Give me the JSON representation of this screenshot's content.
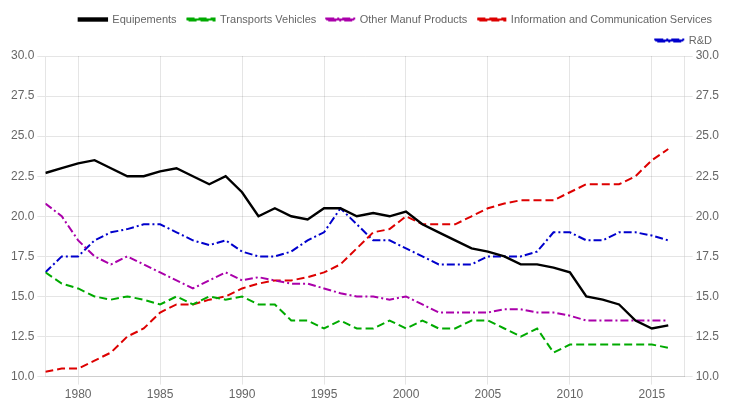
{
  "chart_data": {
    "type": "line",
    "x": [
      1978,
      1979,
      1980,
      1981,
      1982,
      1983,
      1984,
      1985,
      1986,
      1987,
      1988,
      1989,
      1990,
      1991,
      1992,
      1993,
      1994,
      1995,
      1996,
      1997,
      1998,
      1999,
      2000,
      2001,
      2002,
      2003,
      2004,
      2005,
      2006,
      2007,
      2008,
      2009,
      2010,
      2011,
      2012,
      2013,
      2014,
      2015,
      2016
    ],
    "series": [
      {
        "name": "Equipements",
        "color": "#000000",
        "line_style": "solid",
        "values": [
          22.7,
          23.0,
          23.3,
          23.5,
          23.0,
          22.5,
          22.5,
          22.8,
          23.0,
          22.5,
          22.0,
          22.5,
          21.5,
          20.0,
          20.5,
          20.0,
          19.8,
          20.5,
          20.5,
          20.0,
          20.2,
          20.0,
          20.3,
          19.5,
          19.0,
          18.5,
          18.0,
          17.8,
          17.5,
          17.0,
          17.0,
          16.8,
          16.5,
          15.0,
          14.8,
          14.5,
          13.5,
          13.0,
          13.2
        ]
      },
      {
        "name": "Transports Vehicles",
        "color": "#00aa00",
        "line_style": "dashed",
        "values": [
          16.5,
          15.8,
          15.5,
          15.0,
          14.8,
          15.0,
          14.8,
          14.5,
          15.0,
          14.5,
          15.0,
          14.8,
          15.0,
          14.5,
          14.5,
          13.5,
          13.5,
          13.0,
          13.5,
          13.0,
          13.0,
          13.5,
          13.0,
          13.5,
          13.0,
          13.0,
          13.5,
          13.5,
          13.0,
          12.5,
          13.0,
          11.5,
          12.0,
          12.0,
          12.0,
          12.0,
          12.0,
          12.0,
          11.8
        ]
      },
      {
        "name": "Other Manuf Products",
        "color": "#aa00aa",
        "line_style": "dashdot",
        "values": [
          20.8,
          20.0,
          18.5,
          17.5,
          17.0,
          17.5,
          17.0,
          16.5,
          16.0,
          15.5,
          16.0,
          16.5,
          16.0,
          16.2,
          16.0,
          15.8,
          15.8,
          15.5,
          15.2,
          15.0,
          15.0,
          14.8,
          15.0,
          14.5,
          14.0,
          14.0,
          14.0,
          14.0,
          14.2,
          14.2,
          14.0,
          14.0,
          13.8,
          13.5,
          13.5,
          13.5,
          13.5,
          13.5,
          13.5
        ]
      },
      {
        "name": "Information and Communication Services",
        "color": "#dd0000",
        "line_style": "dashed",
        "values": [
          10.3,
          10.5,
          10.5,
          11.0,
          11.5,
          12.5,
          13.0,
          14.0,
          14.5,
          14.5,
          14.8,
          15.0,
          15.5,
          15.8,
          16.0,
          16.0,
          16.2,
          16.5,
          17.0,
          18.0,
          19.0,
          19.2,
          20.0,
          19.5,
          19.5,
          19.5,
          20.0,
          20.5,
          20.8,
          21.0,
          21.0,
          21.0,
          21.5,
          22.0,
          22.0,
          22.0,
          22.5,
          23.5,
          24.2
        ]
      },
      {
        "name": "R&D",
        "color": "#0000cc",
        "line_style": "dashdot",
        "values": [
          16.5,
          17.5,
          17.5,
          18.5,
          19.0,
          19.2,
          19.5,
          19.5,
          19.0,
          18.5,
          18.2,
          18.5,
          17.8,
          17.5,
          17.5,
          17.8,
          18.5,
          19.0,
          20.5,
          19.5,
          18.5,
          18.5,
          18.0,
          17.5,
          17.0,
          17.0,
          17.0,
          17.5,
          17.5,
          17.5,
          17.8,
          19.0,
          19.0,
          18.5,
          18.5,
          19.0,
          19.0,
          18.8,
          18.5
        ]
      }
    ],
    "xlim": [
      1978,
      2017
    ],
    "xticks": [
      1980,
      1985,
      1990,
      1995,
      2000,
      2005,
      2010,
      2015
    ],
    "ylim": [
      10.0,
      30.0
    ],
    "yticks": [
      {
        "value": 10,
        "label": "10.0"
      },
      12.5,
      {
        "value": 15,
        "label": "15.0"
      },
      17.5,
      {
        "value": 20,
        "label": "20.0"
      },
      22.5,
      {
        "value": 25,
        "label": "25.0"
      },
      27.5,
      {
        "value": 30,
        "label": "30.0"
      }
    ],
    "y2lim": [
      10.0,
      30.0
    ],
    "y2ticks": [
      {
        "value": 10,
        "label": "10.0"
      },
      12.5,
      {
        "value": 15,
        "label": "15.0"
      },
      17.5,
      {
        "value": 20,
        "label": "20.0"
      },
      22.5,
      {
        "value": 25,
        "label": "25.0"
      },
      27.5,
      {
        "value": 30,
        "label": "30.0"
      }
    ],
    "grid": true,
    "legend": "upper right"
  }
}
